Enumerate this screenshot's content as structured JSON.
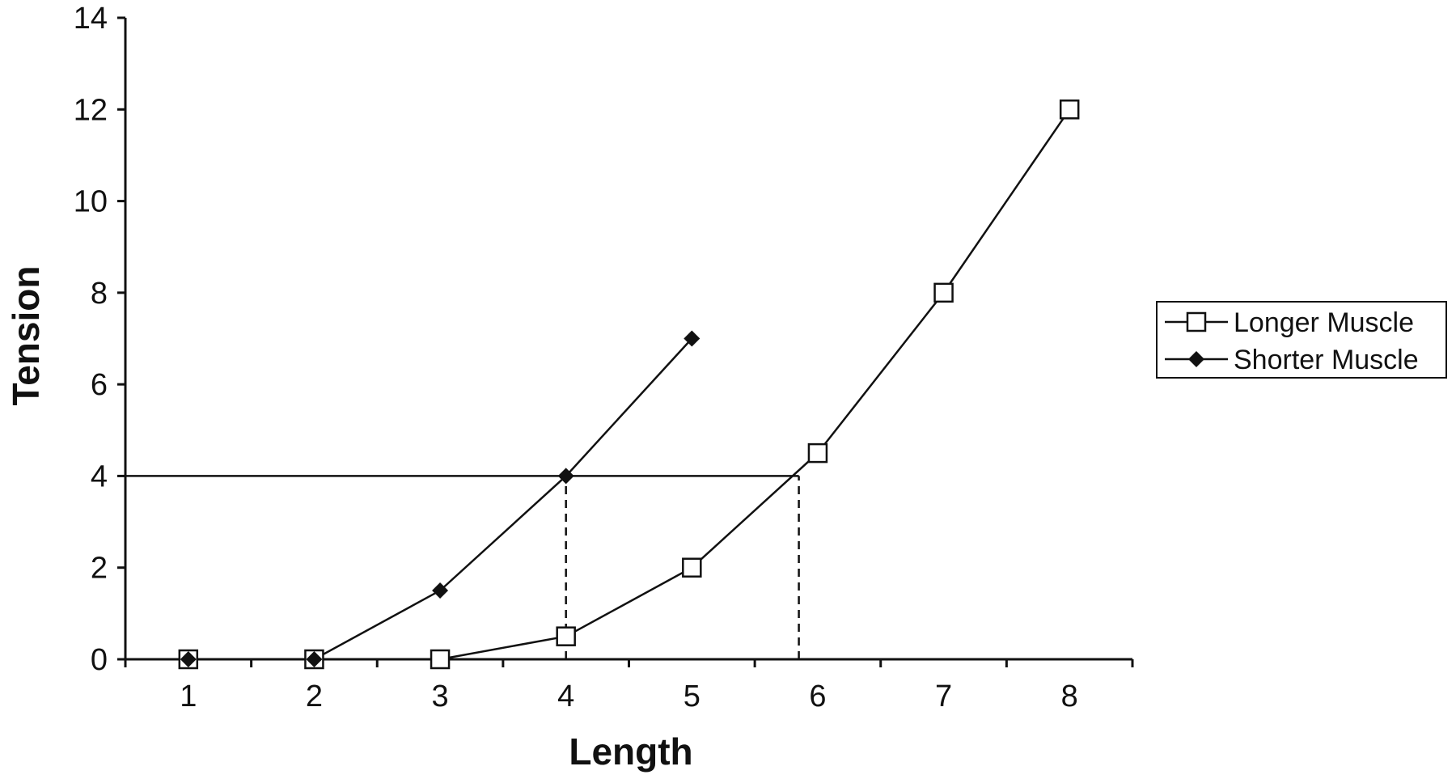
{
  "chart_data": {
    "type": "line",
    "title": "",
    "xlabel": "Length",
    "ylabel": "Tension",
    "x_ticks": [
      1,
      2,
      3,
      4,
      5,
      6,
      7,
      8
    ],
    "y_ticks": [
      0,
      2,
      4,
      6,
      8,
      10,
      12,
      14
    ],
    "xlim": [
      0.5,
      8.5
    ],
    "ylim": [
      0,
      14
    ],
    "grid": false,
    "legend_position": "right",
    "series": [
      {
        "name": "Longer Muscle",
        "marker": "open-square",
        "color": "#111111",
        "x": [
          1,
          2,
          3,
          4,
          5,
          6,
          7,
          8
        ],
        "y": [
          0,
          0,
          0,
          0.5,
          2,
          4.5,
          8,
          12
        ]
      },
      {
        "name": "Shorter Muscle",
        "marker": "filled-diamond",
        "color": "#111111",
        "x": [
          1,
          2,
          3,
          4,
          5
        ],
        "y": [
          0,
          0,
          1.5,
          4,
          7
        ]
      }
    ],
    "annotations": [
      {
        "type": "horizontal-line",
        "y": 4,
        "x_from": 0.5,
        "x_to": 5.85,
        "style": "solid"
      },
      {
        "type": "vertical-line",
        "x": 4,
        "y_from": 0,
        "y_to": 4,
        "style": "dashed"
      },
      {
        "type": "vertical-line",
        "x": 5.85,
        "y_from": 0,
        "y_to": 4,
        "style": "dashed"
      }
    ]
  }
}
